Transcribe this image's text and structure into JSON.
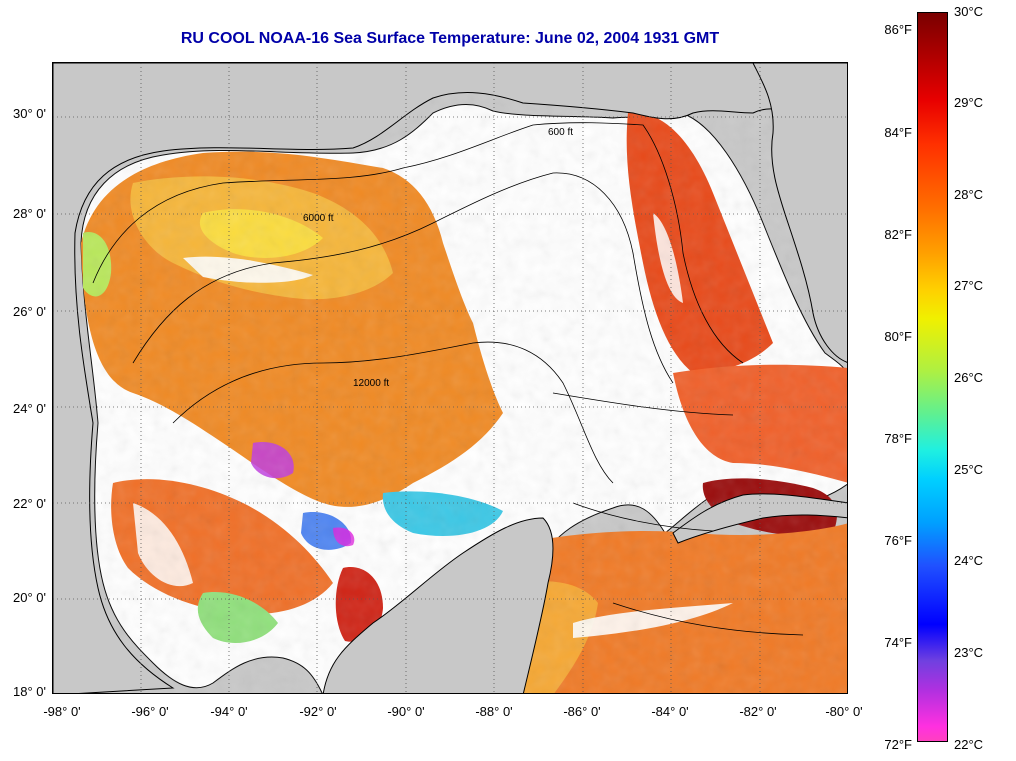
{
  "title": "RU COOL  NOAA-16  Sea Surface Temperature:  June 02, 2004 1931 GMT",
  "map": {
    "lon_range": [
      -98,
      -80
    ],
    "lat_range": [
      18,
      31
    ],
    "grid": "dotted",
    "x_ticks": [
      "-98° 0'",
      "-96° 0'",
      "-94° 0'",
      "-92° 0'",
      "-90° 0'",
      "-88° 0'",
      "-86° 0'",
      "-84° 0'",
      "-82° 0'",
      "-80° 0'"
    ],
    "y_ticks": [
      "18° 0'",
      "20° 0'",
      "22° 0'",
      "24° 0'",
      "26° 0'",
      "28° 0'",
      "30° 0'"
    ],
    "land_color": "#c8c8c8",
    "cloud_color": "#ffffff",
    "contour_labels": [
      "600 ft",
      "6000 ft",
      "12000 ft"
    ]
  },
  "colorbar": {
    "fahrenheit_ticks": [
      "86°F",
      "84°F",
      "82°F",
      "80°F",
      "78°F",
      "76°F",
      "74°F",
      "72°F"
    ],
    "celsius_ticks": [
      "30°C",
      "29°C",
      "28°C",
      "27°C",
      "26°C",
      "25°C",
      "24°C",
      "23°C",
      "22°C"
    ],
    "range_celsius": [
      22,
      30
    ]
  }
}
